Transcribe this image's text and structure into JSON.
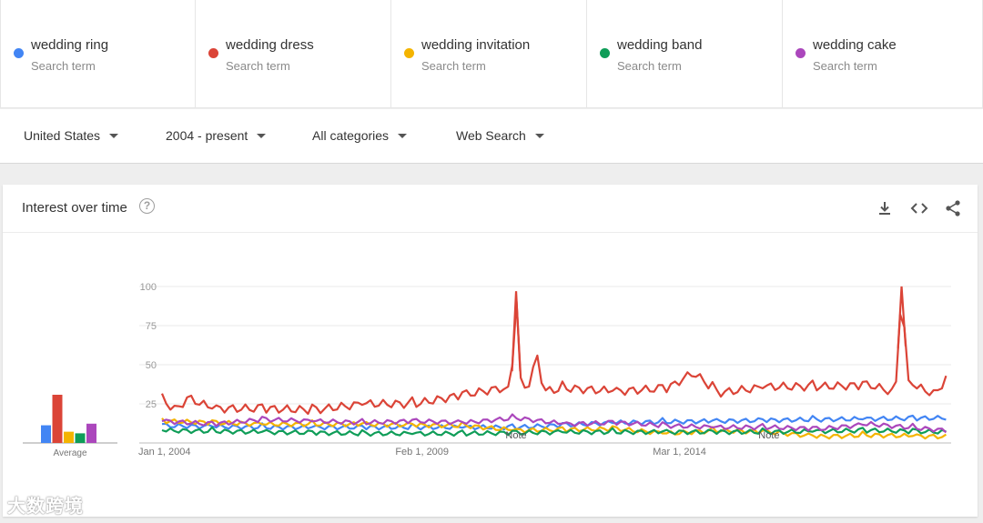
{
  "terms": [
    {
      "name": "wedding ring",
      "sub": "Search term",
      "color": "#4285f4"
    },
    {
      "name": "wedding dress",
      "sub": "Search term",
      "color": "#db4437"
    },
    {
      "name": "wedding invitation",
      "sub": "Search term",
      "color": "#f4b400"
    },
    {
      "name": "wedding band",
      "sub": "Search term",
      "color": "#0f9d58"
    },
    {
      "name": "wedding cake",
      "sub": "Search term",
      "color": "#ab47bc"
    }
  ],
  "filters": {
    "region": "United States",
    "time": "2004 - present",
    "category": "All categories",
    "search_type": "Web Search"
  },
  "card": {
    "title": "Interest over time",
    "help": "?",
    "actions": [
      "download-icon",
      "embed-code-icon",
      "share-icon"
    ]
  },
  "chart_data": {
    "type": "line",
    "ylim": [
      0,
      100
    ],
    "y_ticks": [
      25,
      50,
      75,
      100
    ],
    "x_tick_labels": [
      "Jan 1, 2004",
      "Feb 1, 2009",
      "Mar 1, 2014"
    ],
    "x_range_years": [
      2004,
      2019.6
    ],
    "notes": [
      {
        "label": "Note",
        "year": 2011.0
      },
      {
        "label": "Note",
        "year": 2016.0
      }
    ],
    "average": {
      "label": "Average",
      "values": [
        11,
        30,
        7,
        6,
        12
      ]
    },
    "series": [
      {
        "name": "wedding ring",
        "color": "#4285f4",
        "anchors": [
          [
            2004,
            11
          ],
          [
            2006,
            10
          ],
          [
            2009,
            10
          ],
          [
            2011,
            10
          ],
          [
            2013,
            13
          ],
          [
            2015,
            14
          ],
          [
            2017,
            15
          ],
          [
            2019.5,
            16
          ]
        ]
      },
      {
        "name": "wedding dress",
        "color": "#db4437",
        "anchors": [
          [
            2004,
            27
          ],
          [
            2004.3,
            21
          ],
          [
            2004.5,
            29
          ],
          [
            2005,
            22
          ],
          [
            2006,
            22
          ],
          [
            2007,
            21
          ],
          [
            2008,
            25
          ],
          [
            2009,
            25
          ],
          [
            2010,
            31
          ],
          [
            2010.7,
            35
          ],
          [
            2010.9,
            33
          ],
          [
            2011.0,
            97
          ],
          [
            2011.1,
            33
          ],
          [
            2011.3,
            40
          ],
          [
            2011.4,
            58
          ],
          [
            2011.55,
            33
          ],
          [
            2012,
            35
          ],
          [
            2013,
            33
          ],
          [
            2014,
            35
          ],
          [
            2014.5,
            45
          ],
          [
            2015,
            32
          ],
          [
            2016,
            36
          ],
          [
            2017,
            36
          ],
          [
            2018,
            37
          ],
          [
            2018.5,
            32
          ],
          [
            2018.62,
            100
          ],
          [
            2018.75,
            38
          ],
          [
            2019.3,
            31
          ],
          [
            2019.5,
            42
          ]
        ]
      },
      {
        "name": "wedding invitation",
        "color": "#f4b400",
        "anchors": [
          [
            2004,
            14
          ],
          [
            2006,
            12
          ],
          [
            2008,
            12
          ],
          [
            2010,
            11
          ],
          [
            2011,
            8
          ],
          [
            2013,
            9
          ],
          [
            2014,
            6
          ],
          [
            2015,
            8
          ],
          [
            2016,
            7
          ],
          [
            2017,
            4
          ],
          [
            2018,
            5
          ],
          [
            2019.5,
            4
          ]
        ]
      },
      {
        "name": "wedding band",
        "color": "#0f9d58",
        "anchors": [
          [
            2004,
            8
          ],
          [
            2006,
            7
          ],
          [
            2008,
            6
          ],
          [
            2010,
            6
          ],
          [
            2012,
            7
          ],
          [
            2014,
            7
          ],
          [
            2016,
            7
          ],
          [
            2018,
            8
          ],
          [
            2019.5,
            7
          ]
        ]
      },
      {
        "name": "wedding cake",
        "color": "#ab47bc",
        "anchors": [
          [
            2004,
            14
          ],
          [
            2005,
            12
          ],
          [
            2006,
            15
          ],
          [
            2007,
            14
          ],
          [
            2008,
            13
          ],
          [
            2009,
            14
          ],
          [
            2010,
            13
          ],
          [
            2011,
            16
          ],
          [
            2012,
            12
          ],
          [
            2013,
            13
          ],
          [
            2014,
            11
          ],
          [
            2015,
            10
          ],
          [
            2016,
            10
          ],
          [
            2017,
            9
          ],
          [
            2018,
            12
          ],
          [
            2019.5,
            8
          ]
        ]
      }
    ]
  },
  "watermark": "大数跨境"
}
